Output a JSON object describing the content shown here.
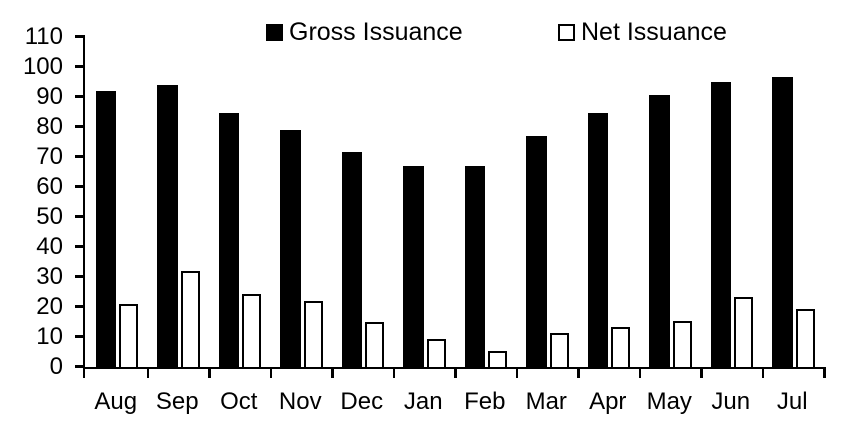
{
  "chart_data": {
    "type": "bar",
    "title": "",
    "xlabel": "",
    "ylabel": "",
    "categories": [
      "Aug",
      "Sep",
      "Oct",
      "Nov",
      "Dec",
      "Jan",
      "Feb",
      "Mar",
      "Apr",
      "May",
      "Jun",
      "Jul"
    ],
    "series": [
      {
        "name": "Gross Issuance",
        "style": "solid-black",
        "values": [
          92,
          94,
          84.5,
          79,
          71.5,
          67,
          67,
          77,
          84.5,
          90.5,
          95,
          96.5
        ]
      },
      {
        "name": "Net Issuance",
        "style": "white-outlined",
        "values": [
          20.5,
          31.5,
          24,
          21.5,
          14.5,
          9,
          5,
          11,
          13,
          15,
          23,
          19
        ]
      }
    ],
    "ylim": [
      0,
      110
    ],
    "y_ticks": [
      0,
      10,
      20,
      30,
      40,
      50,
      60,
      70,
      80,
      90,
      100,
      110
    ],
    "grid": false,
    "legend_position": "top",
    "colors": {
      "gross_fill": "#000000",
      "net_fill": "#ffffff",
      "net_border": "#000000",
      "axis": "#000000",
      "text": "#000000",
      "background": "#ffffff"
    }
  }
}
